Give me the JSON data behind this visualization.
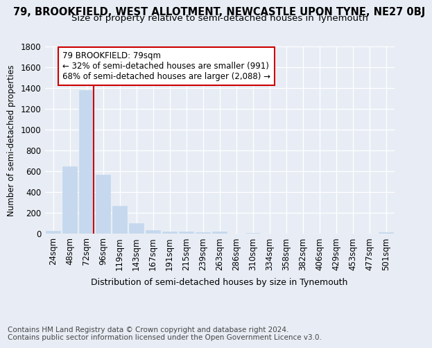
{
  "title1": "79, BROOKFIELD, WEST ALLOTMENT, NEWCASTLE UPON TYNE, NE27 0BJ",
  "title2": "Size of property relative to semi-detached houses in Tynemouth",
  "xlabel": "Distribution of semi-detached houses by size in Tynemouth",
  "ylabel": "Number of semi-detached properties",
  "categories": [
    "24sqm",
    "48sqm",
    "72sqm",
    "96sqm",
    "119sqm",
    "143sqm",
    "167sqm",
    "191sqm",
    "215sqm",
    "239sqm",
    "263sqm",
    "286sqm",
    "310sqm",
    "334sqm",
    "358sqm",
    "382sqm",
    "406sqm",
    "429sqm",
    "453sqm",
    "477sqm",
    "501sqm"
  ],
  "values": [
    30,
    650,
    1380,
    565,
    270,
    100,
    35,
    22,
    18,
    15,
    20,
    0,
    10,
    0,
    0,
    0,
    0,
    0,
    0,
    0,
    15
  ],
  "bar_color": "#c5d8ed",
  "bar_edge_color": "#c5d8ed",
  "vline_color": "#cc0000",
  "vline_x_index": 2,
  "annotation_text": "79 BROOKFIELD: 79sqm\n← 32% of semi-detached houses are smaller (991)\n68% of semi-detached houses are larger (2,088) →",
  "annotation_box_facecolor": "white",
  "annotation_box_edgecolor": "#cc0000",
  "bg_color": "#e8edf5",
  "ylim": [
    0,
    1800
  ],
  "yticks": [
    0,
    200,
    400,
    600,
    800,
    1000,
    1200,
    1400,
    1600,
    1800
  ],
  "footnote": "Contains HM Land Registry data © Crown copyright and database right 2024.\nContains public sector information licensed under the Open Government Licence v3.0.",
  "title1_fontsize": 10.5,
  "title2_fontsize": 9.5,
  "xlabel_fontsize": 9,
  "ylabel_fontsize": 8.5,
  "tick_fontsize": 8.5,
  "annotation_fontsize": 8.5,
  "footnote_fontsize": 7.5
}
